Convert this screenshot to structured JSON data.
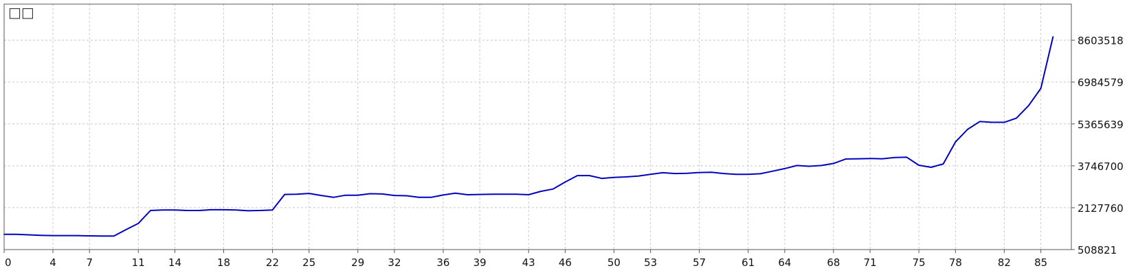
{
  "chart_data": {
    "type": "line",
    "title": "□□",
    "xlabel": "",
    "ylabel": "",
    "x_tick_labels": [
      "0",
      "4",
      "7",
      "11",
      "14",
      "18",
      "22",
      "25",
      "29",
      "32",
      "36",
      "39",
      "43",
      "46",
      "50",
      "53",
      "57",
      "61",
      "64",
      "68",
      "71",
      "75",
      "78",
      "82",
      "85"
    ],
    "y_tick_labels": [
      "508821",
      "2127760",
      "3746700",
      "5365639",
      "6984579",
      "8603518"
    ],
    "y_ticks": [
      508821,
      2127760,
      3746700,
      5365639,
      6984579,
      8603518
    ],
    "ylim": [
      508821,
      10000000
    ],
    "xlim": [
      0,
      87.5
    ],
    "grid": true,
    "legend": "none",
    "series_color": "#0000c0",
    "grid_color": "#c8c8c8",
    "series": [
      {
        "values": [
          1100000,
          1100000,
          1080000,
          1060000,
          1050000,
          1050000,
          1050000,
          1040000,
          1030000,
          1030000,
          1280000,
          1520000,
          2020000,
          2040000,
          2040000,
          2020000,
          2020000,
          2050000,
          2050000,
          2040000,
          2010000,
          2020000,
          2040000,
          2640000,
          2650000,
          2680000,
          2600000,
          2530000,
          2610000,
          2610000,
          2670000,
          2660000,
          2600000,
          2590000,
          2530000,
          2530000,
          2620000,
          2690000,
          2630000,
          2640000,
          2650000,
          2650000,
          2650000,
          2630000,
          2760000,
          2850000,
          3120000,
          3370000,
          3370000,
          3260000,
          3300000,
          3320000,
          3350000,
          3420000,
          3480000,
          3450000,
          3460000,
          3490000,
          3500000,
          3450000,
          3420000,
          3420000,
          3440000,
          3540000,
          3640000,
          3760000,
          3730000,
          3760000,
          3840000,
          4010000,
          4020000,
          4030000,
          4020000,
          4070000,
          4080000,
          3770000,
          3690000,
          3820000,
          4670000,
          5160000,
          5460000,
          5430000,
          5430000,
          5590000,
          6080000,
          6740000,
          8740000
        ]
      }
    ]
  }
}
